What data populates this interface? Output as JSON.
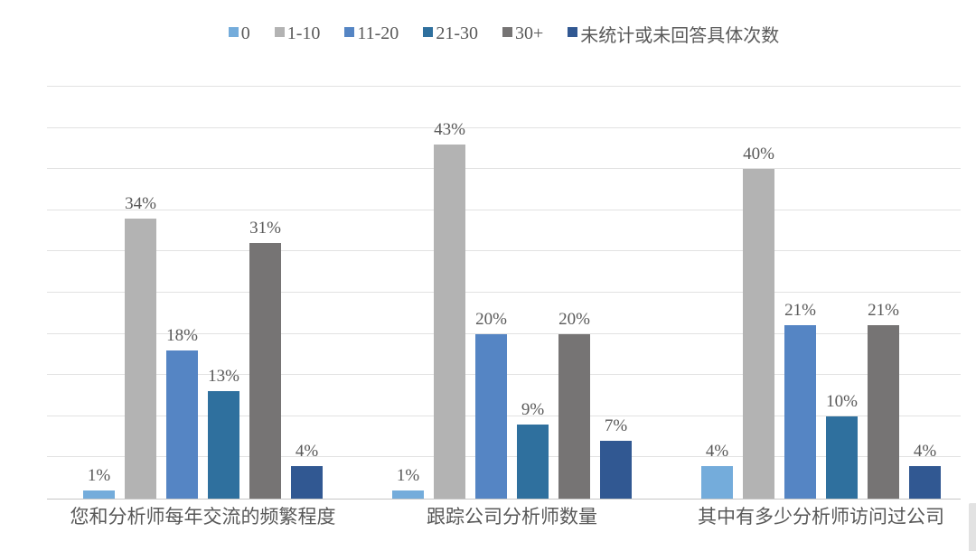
{
  "chart_data": {
    "type": "bar",
    "title": "",
    "xlabel": "",
    "ylabel": "",
    "categories": [
      "您和分析师每年交流的频繁程度",
      "跟踪公司分析师数量",
      "其中有多少分析师访问过公司"
    ],
    "series": [
      {
        "name": "0",
        "color": "#74ACDB",
        "values": [
          1,
          1,
          4
        ]
      },
      {
        "name": "1-10",
        "color": "#B3B3B3",
        "values": [
          34,
          43,
          40
        ]
      },
      {
        "name": "11-20",
        "color": "#5585C4",
        "values": [
          18,
          20,
          21
        ]
      },
      {
        "name": "21-30",
        "color": "#2F709E",
        "values": [
          13,
          9,
          10
        ]
      },
      {
        "name": "30+",
        "color": "#767474",
        "values": [
          31,
          20,
          21
        ]
      },
      {
        "name": "未统计或未回答具体次数",
        "color": "#315892",
        "values": [
          4,
          7,
          4
        ]
      }
    ],
    "data_labels": [
      [
        "1%",
        "34%",
        "18%",
        "13%",
        "31%",
        "4%"
      ],
      [
        "1%",
        "43%",
        "20%",
        "9%",
        "20%",
        "7%"
      ],
      [
        "4%",
        "40%",
        "21%",
        "10%",
        "21%",
        "4%"
      ]
    ],
    "label_suffix": "%",
    "ylim": [
      0,
      50
    ],
    "grid_step": 5,
    "grid": true,
    "legend_position": "top"
  },
  "style": {
    "background": "#FFFFFF",
    "text_color": "#595959",
    "gridline_color": "#E2E2E2",
    "axis_color": "#C6C6C6",
    "corner_artifact_color": "#E2E2E2"
  }
}
